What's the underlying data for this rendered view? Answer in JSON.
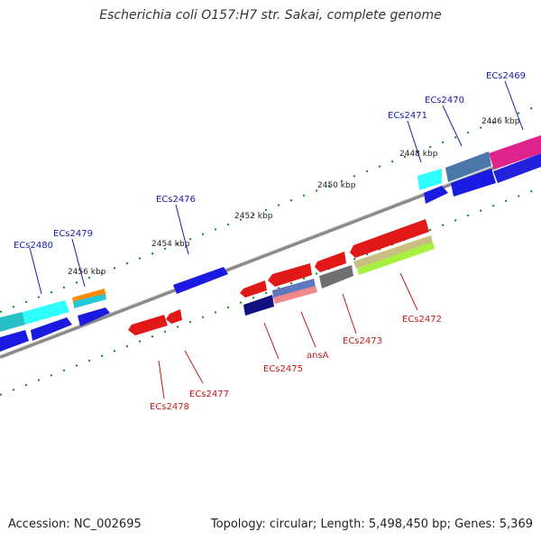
{
  "title": "Escherichia coli O157:H7 str. Sakai, complete genome",
  "footer": {
    "accession": "Accession: NC_002695",
    "summary": "Topology: circular; Length: 5,498,450 bp; Genes: 5,369"
  },
  "colors": {
    "backbone": "#7f7f7f",
    "tick": "#1c7a1c",
    "label_forward": "#1a1aa8",
    "label_reverse": "#c21a1a"
  },
  "ruler": [
    "2446 kbp",
    "2448 kbp",
    "2450 kbp",
    "2452 kbp",
    "2454 kbp",
    "2456 kbp"
  ],
  "gene_labels": {
    "forward": [
      "ECs2469",
      "ECs2470",
      "ECs2471",
      "ECs2476",
      "ECs2479",
      "ECs2480"
    ],
    "reverse": [
      "ECs2472",
      "ECs2473",
      "ansA",
      "ECs2475",
      "ECs2477",
      "ECs2478"
    ]
  }
}
